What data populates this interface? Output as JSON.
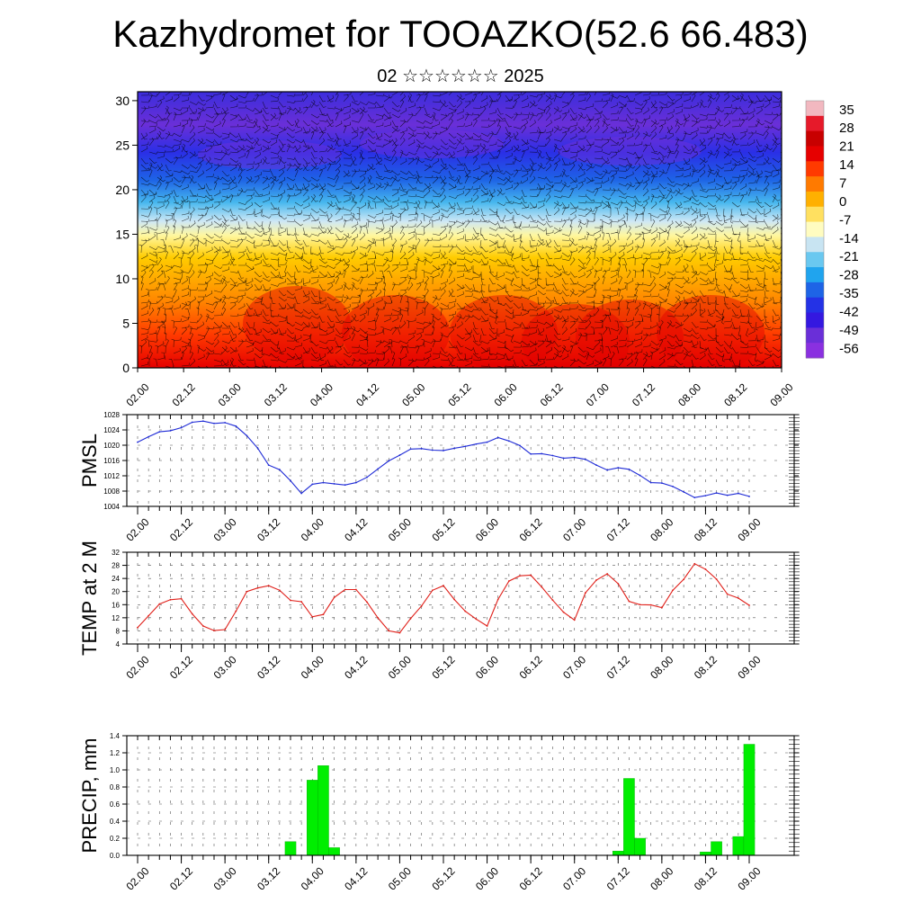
{
  "header": {
    "title": "Kazhydromet for TOOAZKO(52.6 66.483)",
    "subtitle": "02 ☆☆☆☆☆☆ 2025"
  },
  "colors": {
    "pmsl_line": "#1f2bd6",
    "temp_line": "#e0201a",
    "precip_bar": "#00ee00"
  },
  "time_labels": [
    "02.00",
    "02.12",
    "03.00",
    "03.12",
    "04.00",
    "04.12",
    "05.00",
    "05.12",
    "06.00",
    "06.12",
    "07.00",
    "07.12",
    "08.00",
    "08.12",
    "09.00"
  ],
  "chart_data": [
    {
      "type": "heatmap",
      "name": "temperature-cross-section",
      "ylim": [
        0,
        31
      ],
      "yticks": [
        "0",
        "5",
        "10",
        "15",
        "20",
        "25",
        "30"
      ],
      "colorbar_labels": [
        "35",
        "28",
        "21",
        "14",
        "7",
        "0",
        "-7",
        "-14",
        "-21",
        "-28",
        "-35",
        "-42",
        "-49",
        "-56"
      ],
      "colorbar_range": [
        -60,
        38
      ]
    },
    {
      "type": "line",
      "ylabel": "PMSL",
      "ylim": [
        1004,
        1028
      ],
      "yticks": [
        "1004",
        "1008",
        "1012",
        "1016",
        "1020",
        "1024",
        "1028"
      ],
      "x": [
        0,
        1,
        2,
        3,
        4,
        5,
        6,
        7,
        8,
        9,
        10,
        11,
        12,
        13,
        14,
        15,
        16,
        17,
        18,
        19,
        20,
        21,
        22,
        23,
        24,
        25,
        26,
        27,
        28,
        29,
        30,
        31,
        32,
        33,
        34,
        35,
        36,
        37,
        38,
        39,
        40,
        41,
        42,
        43,
        44,
        45,
        46,
        47,
        48,
        49,
        50,
        51,
        52,
        53,
        54,
        55,
        56
      ],
      "values": [
        1020.8,
        1022.2,
        1023.5,
        1023.8,
        1024.6,
        1026.0,
        1026.3,
        1025.7,
        1025.9,
        1025.0,
        1022.5,
        1019.2,
        1014.8,
        1013.6,
        1010.7,
        1007.4,
        1009.8,
        1010.2,
        1009.9,
        1009.6,
        1010.2,
        1011.6,
        1013.8,
        1015.9,
        1017.4,
        1019.0,
        1019.1,
        1018.7,
        1018.6,
        1019.2,
        1019.7,
        1020.3,
        1020.8,
        1022.0,
        1021.1,
        1019.9,
        1017.7,
        1017.8,
        1017.3,
        1016.6,
        1016.8,
        1016.3,
        1014.8,
        1013.5,
        1014.1,
        1013.7,
        1012.1,
        1010.2,
        1010.1,
        1009.2,
        1007.8,
        1006.3,
        1006.8,
        1007.5,
        1006.9,
        1007.4,
        1006.6
      ]
    },
    {
      "type": "line",
      "ylabel": "TEMP at 2 M",
      "ylim": [
        4,
        32
      ],
      "yticks": [
        "4",
        "8",
        "12",
        "16",
        "20",
        "24",
        "28",
        "32"
      ],
      "x": [
        0,
        1,
        2,
        3,
        4,
        5,
        6,
        7,
        8,
        9,
        10,
        11,
        12,
        13,
        14,
        15,
        16,
        17,
        18,
        19,
        20,
        21,
        22,
        23,
        24,
        25,
        26,
        27,
        28,
        29,
        30,
        31,
        32,
        33,
        34,
        35,
        36,
        37,
        38,
        39,
        40,
        41,
        42,
        43,
        44,
        45,
        46,
        47,
        48,
        49,
        50,
        51,
        52,
        53,
        54,
        55,
        56
      ],
      "values": [
        9.0,
        12.6,
        16.2,
        17.5,
        17.8,
        13.2,
        9.5,
        8.1,
        8.4,
        14.0,
        20.0,
        21.1,
        21.8,
        20.4,
        17.3,
        16.9,
        12.3,
        13.0,
        18.2,
        20.6,
        20.6,
        16.8,
        12.0,
        8.0,
        7.4,
        11.8,
        15.6,
        20.4,
        21.8,
        17.6,
        14.0,
        11.6,
        9.5,
        17.6,
        23.2,
        24.8,
        25.0,
        21.4,
        17.4,
        13.7,
        11.3,
        19.6,
        23.5,
        25.4,
        22.4,
        17.0,
        16.0,
        15.9,
        15.1,
        20.4,
        23.7,
        28.5,
        26.8,
        23.8,
        19.2,
        18.0,
        15.8
      ]
    },
    {
      "type": "bar",
      "ylabel": "PRECIP, mm",
      "ylim": [
        0,
        1.4
      ],
      "yticks": [
        "0.0",
        "0.2",
        "0.4",
        "0.6",
        "0.8",
        "1.0",
        "1.2",
        "1.4"
      ],
      "bins": 57,
      "bars": [
        {
          "bin": 14,
          "value": 0.16
        },
        {
          "bin": 16,
          "value": 0.88
        },
        {
          "bin": 17,
          "value": 1.05
        },
        {
          "bin": 18,
          "value": 0.09
        },
        {
          "bin": 44,
          "value": 0.05
        },
        {
          "bin": 45,
          "value": 0.9
        },
        {
          "bin": 46,
          "value": 0.2
        },
        {
          "bin": 52,
          "value": 0.04
        },
        {
          "bin": 53,
          "value": 0.16
        },
        {
          "bin": 55,
          "value": 0.22
        },
        {
          "bin": 56,
          "value": 1.3
        }
      ]
    }
  ],
  "axis_labels": {
    "pmsl": "PMSL",
    "temp": "TEMP at 2 M",
    "precip": "PRECIP, mm"
  }
}
